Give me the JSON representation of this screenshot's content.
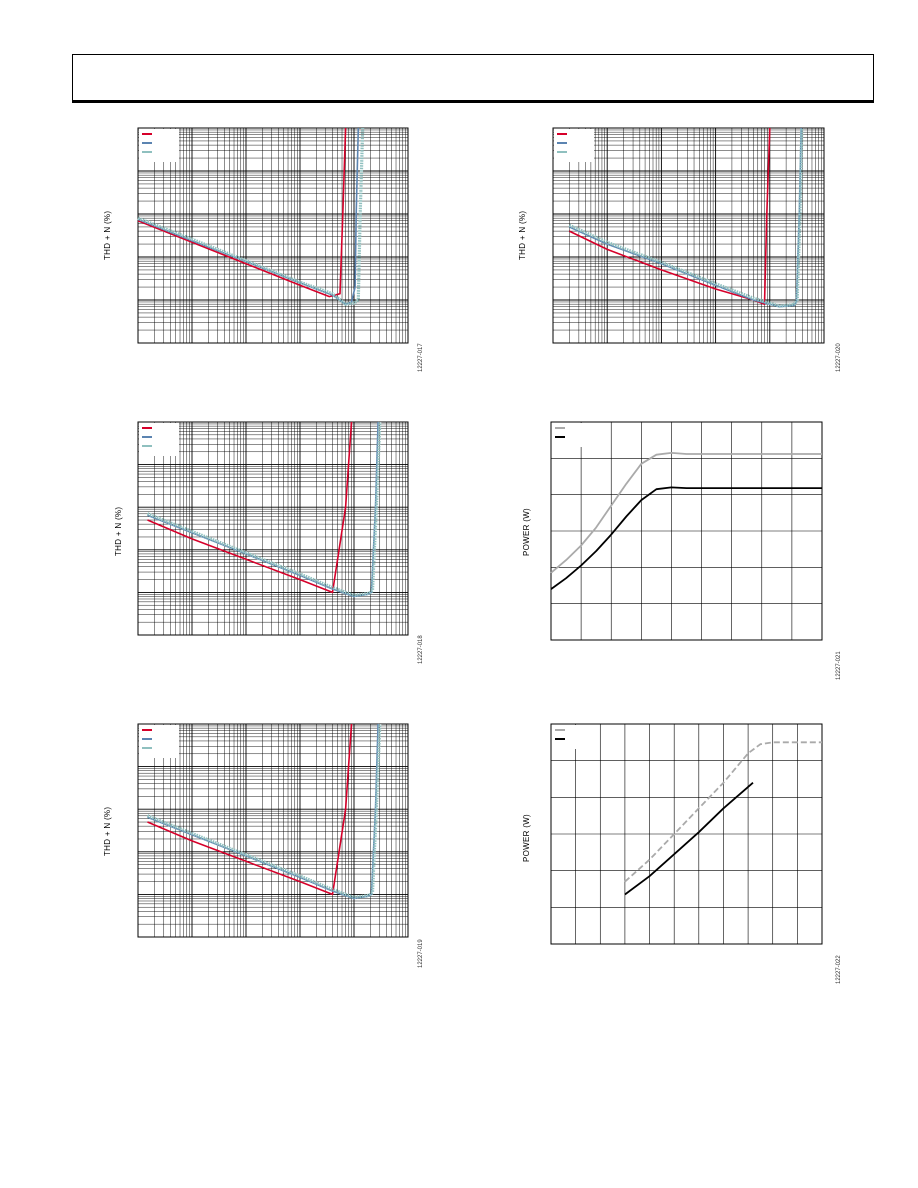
{
  "colors": {
    "red": "#d6002a",
    "blue": "#5b84b1",
    "teal": "#8fc0bf",
    "gray": "#aaaaaa",
    "black": "#000000",
    "grid": "#000000"
  },
  "chart_data": [
    {
      "id": "c1",
      "type": "line",
      "xscale": "log",
      "yscale": "log",
      "xlim": [
        0.0001,
        10
      ],
      "ylim": [
        0.001,
        100
      ],
      "ylabel": "THD + N (%)",
      "figure_id": "12227-017",
      "legend": "top-left",
      "legend_entries": 3,
      "grid": true,
      "series": [
        {
          "color": "red",
          "x": [
            0.0001,
            0.001,
            0.01,
            0.1,
            0.35,
            0.55,
            0.62,
            0.7
          ],
          "y": [
            0.7,
            0.22,
            0.07,
            0.022,
            0.012,
            0.014,
            1,
            100
          ]
        },
        {
          "color": "blue",
          "x": [
            0.0001,
            0.001,
            0.01,
            0.1,
            0.4,
            0.7,
            0.9,
            1.05,
            1.1,
            1.2
          ],
          "y": [
            0.75,
            0.24,
            0.078,
            0.025,
            0.013,
            0.008,
            0.009,
            0.02,
            1,
            100
          ]
        },
        {
          "color": "teal",
          "x": [
            0.0001,
            0.001,
            0.01,
            0.1,
            0.4,
            0.7,
            1.0,
            1.2,
            1.3,
            1.45
          ],
          "y": [
            0.8,
            0.26,
            0.082,
            0.026,
            0.014,
            0.008,
            0.0085,
            0.01,
            1,
            100
          ]
        }
      ]
    },
    {
      "id": "c2",
      "type": "line",
      "xscale": "log",
      "yscale": "log",
      "xlim": [
        0.0001,
        10
      ],
      "ylim": [
        0.001,
        100
      ],
      "ylabel": "THD + N (%)",
      "figure_id": "12227-020",
      "legend": "top-left",
      "legend_entries": 3,
      "grid": true,
      "series": [
        {
          "color": "red",
          "x": [
            0.0002,
            0.001,
            0.01,
            0.1,
            0.5,
            0.8,
            0.88,
            1.0
          ],
          "y": [
            0.4,
            0.15,
            0.05,
            0.018,
            0.01,
            0.008,
            1,
            100
          ]
        },
        {
          "color": "blue",
          "x": [
            0.0002,
            0.001,
            0.01,
            0.1,
            0.5,
            1.5,
            2.8,
            3.1,
            3.5,
            3.8
          ],
          "y": [
            0.5,
            0.2,
            0.07,
            0.022,
            0.01,
            0.007,
            0.0075,
            0.009,
            1,
            100
          ]
        },
        {
          "color": "teal",
          "x": [
            0.0002,
            0.001,
            0.01,
            0.1,
            0.5,
            1.5,
            2.8,
            3.2,
            3.6,
            3.9
          ],
          "y": [
            0.55,
            0.22,
            0.075,
            0.024,
            0.011,
            0.0072,
            0.0078,
            0.01,
            1,
            100
          ]
        }
      ]
    },
    {
      "id": "c3",
      "type": "line",
      "xscale": "log",
      "yscale": "log",
      "xlim": [
        0.0001,
        10
      ],
      "ylim": [
        0.001,
        100
      ],
      "ylabel": "THD + N (%)",
      "figure_id": "12227-018",
      "legend": "top-left",
      "legend_entries": 3,
      "grid": true,
      "series": [
        {
          "color": "red",
          "x": [
            0.00015,
            0.001,
            0.01,
            0.1,
            0.4,
            0.7,
            0.9
          ],
          "y": [
            0.5,
            0.18,
            0.06,
            0.02,
            0.01,
            1,
            100
          ]
        },
        {
          "color": "blue",
          "x": [
            0.00015,
            0.001,
            0.01,
            0.1,
            0.4,
            1.0,
            1.8,
            2.1,
            2.5,
            2.8
          ],
          "y": [
            0.65,
            0.25,
            0.08,
            0.025,
            0.012,
            0.008,
            0.009,
            0.01,
            1,
            100
          ]
        },
        {
          "color": "teal",
          "x": [
            0.00015,
            0.001,
            0.01,
            0.1,
            0.4,
            1.0,
            1.9,
            2.2,
            2.6,
            3.0
          ],
          "y": [
            0.7,
            0.27,
            0.085,
            0.027,
            0.013,
            0.0085,
            0.0095,
            0.011,
            1,
            100
          ]
        }
      ]
    },
    {
      "id": "c4",
      "type": "line",
      "xscale": "linear",
      "yscale": "linear",
      "xlim": [
        0,
        9
      ],
      "ylim": [
        0,
        6
      ],
      "ylabel": "POWER (W)",
      "figure_id": "12227-021",
      "legend": "top-left",
      "legend_entries": 2,
      "grid": true,
      "series": [
        {
          "color": "gray",
          "x": [
            0,
            0.5,
            1,
            1.5,
            2,
            2.5,
            3,
            3.5,
            4,
            4.5,
            5,
            6,
            7,
            8,
            9
          ],
          "y": [
            1.85,
            2.2,
            2.6,
            3.1,
            3.7,
            4.3,
            4.85,
            5.1,
            5.15,
            5.12,
            5.12,
            5.12,
            5.12,
            5.12,
            5.12
          ]
        },
        {
          "color": "black",
          "x": [
            0,
            0.5,
            1,
            1.5,
            2,
            2.5,
            3,
            3.5,
            4,
            4.5,
            5,
            6,
            7,
            8,
            9
          ],
          "y": [
            1.4,
            1.7,
            2.05,
            2.45,
            2.9,
            3.4,
            3.85,
            4.15,
            4.2,
            4.18,
            4.18,
            4.18,
            4.18,
            4.18,
            4.18
          ]
        }
      ]
    },
    {
      "id": "c5",
      "type": "line",
      "xscale": "linear",
      "yscale": "linear",
      "xlim": [
        0,
        11
      ],
      "ylim": [
        0,
        6
      ],
      "ylabel": "POWER (W)",
      "figure_id": "12227-022",
      "legend": "top-left",
      "legend_entries": 2,
      "grid": true,
      "series": [
        {
          "color": "gray",
          "dashed": true,
          "x": [
            3,
            4,
            5,
            6,
            7,
            8,
            8.5,
            9,
            10,
            11
          ],
          "y": [
            1.7,
            2.3,
            3.0,
            3.7,
            4.4,
            5.2,
            5.45,
            5.5,
            5.5,
            5.5
          ]
        },
        {
          "color": "black",
          "x": [
            3,
            4,
            5,
            6,
            7,
            8.2
          ],
          "y": [
            1.35,
            1.85,
            2.45,
            3.05,
            3.7,
            4.4
          ]
        }
      ]
    }
  ]
}
